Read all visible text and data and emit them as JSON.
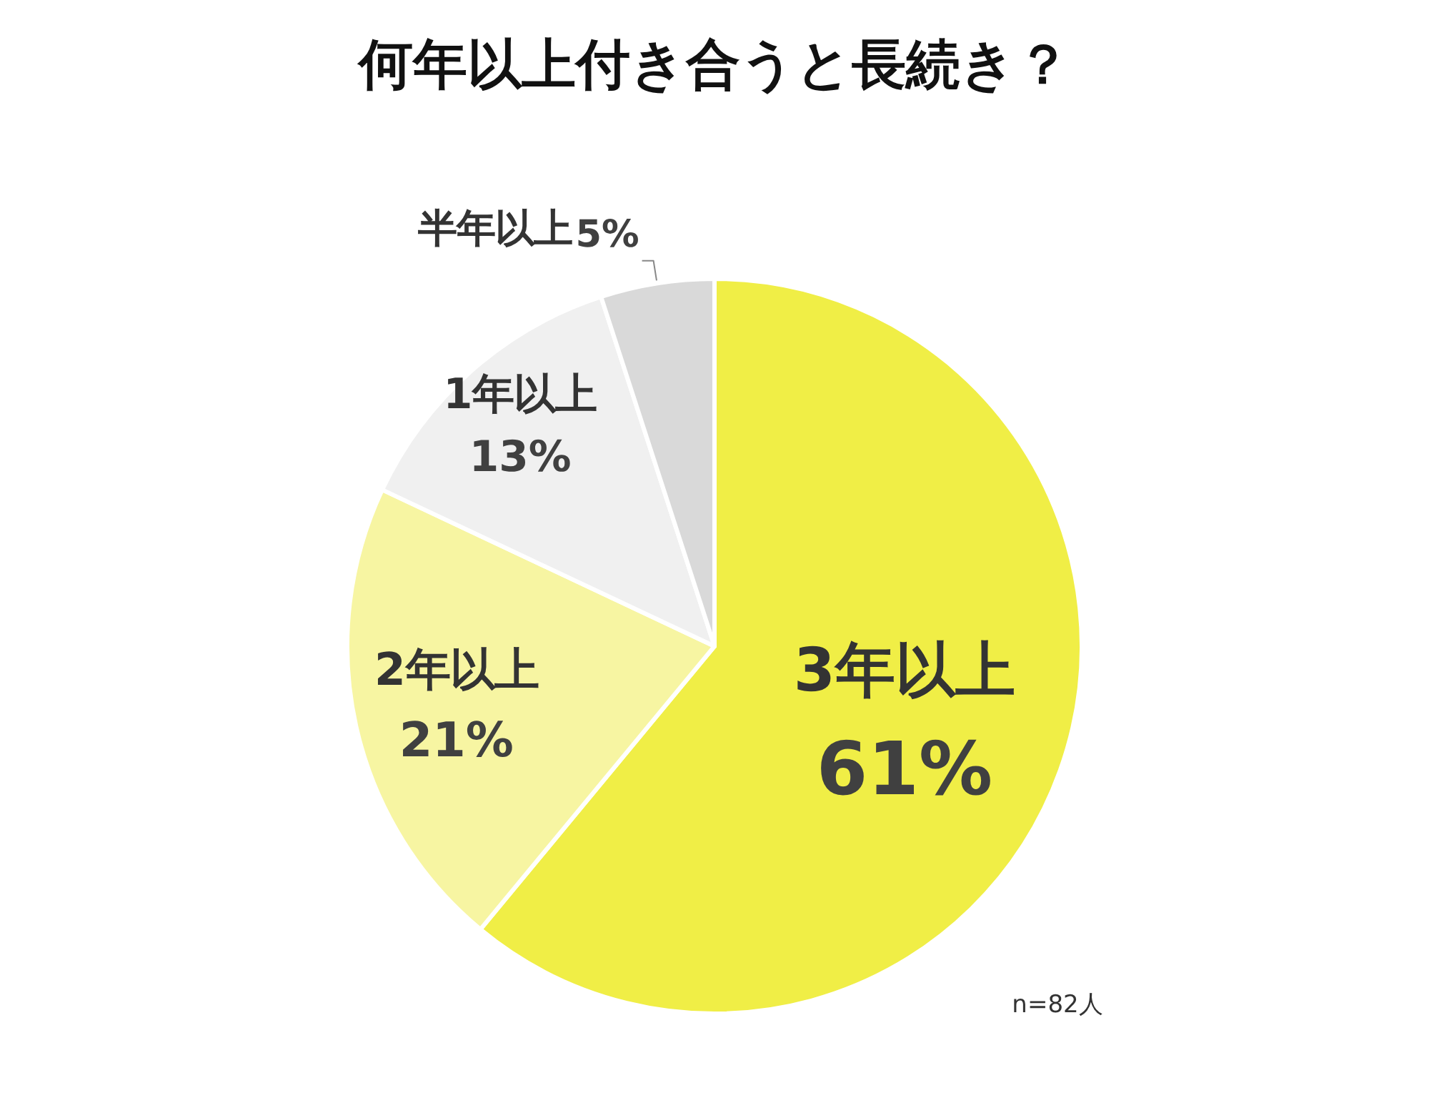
{
  "chart_data": {
    "type": "pie",
    "title": "何年以上付き合うと長続き？",
    "categories": [
      "3年以上",
      "2年以上",
      "1年以上",
      "半年以上"
    ],
    "values": [
      61,
      21,
      13,
      5
    ],
    "value_labels": [
      "61%",
      "21%",
      "13%",
      "5%"
    ],
    "colors": [
      "#f0ee46",
      "#f7f5a2",
      "#f0f0f0",
      "#d9d9d9"
    ],
    "annotations": [
      "n=82人"
    ]
  }
}
